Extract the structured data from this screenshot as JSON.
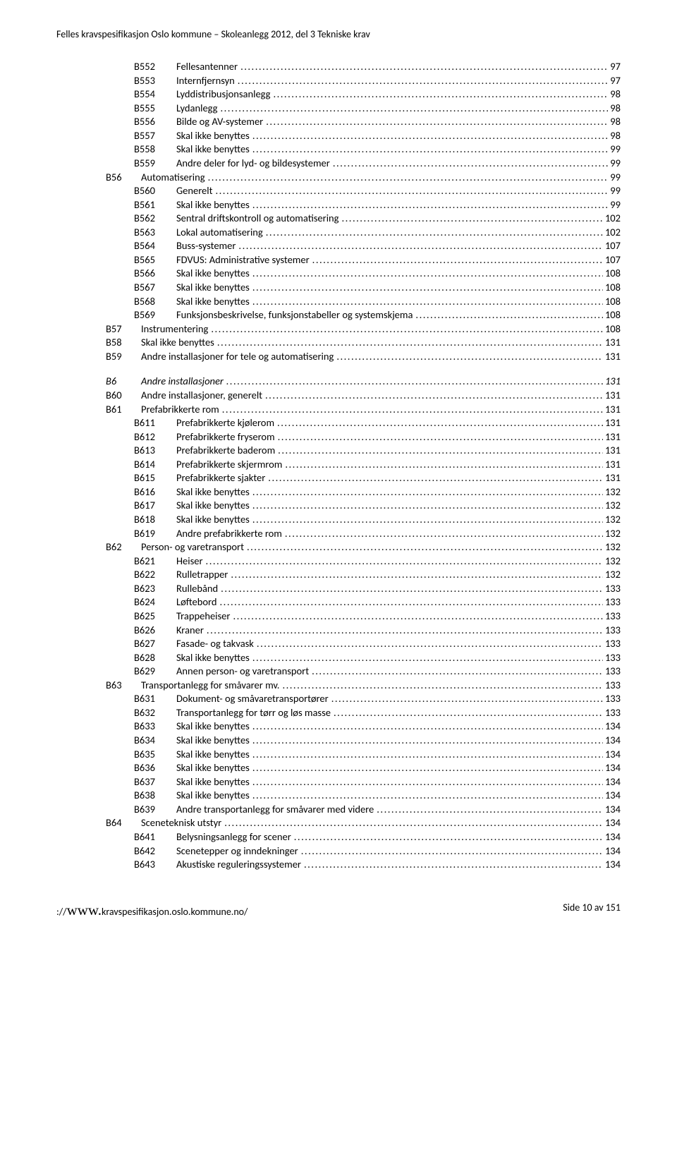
{
  "header_text": "Felles kravspesifikasjon Oslo kommune – Skoleanlegg 2012, del 3 Tekniske krav",
  "footer_left_prefix": "://",
  "footer_left_big": "www.",
  "footer_left_rest": "kravspesifikasjon.oslo.kommune.no/",
  "footer_right": "Side 10 av 151",
  "toc": [
    {
      "indent": 3,
      "code": "B552",
      "title": "Fellesantenner",
      "page": "97"
    },
    {
      "indent": 3,
      "code": "B553",
      "title": "Internfjernsyn",
      "page": "97"
    },
    {
      "indent": 3,
      "code": "B554",
      "title": "Lyddistribusjonsanlegg",
      "page": "98"
    },
    {
      "indent": 3,
      "code": "B555",
      "title": "Lydanlegg",
      "page": "98"
    },
    {
      "indent": 3,
      "code": "B556",
      "title": "Bilde og AV-systemer",
      "page": "98"
    },
    {
      "indent": 3,
      "code": "B557",
      "title": "Skal ikke benyttes",
      "page": "98"
    },
    {
      "indent": 3,
      "code": "B558",
      "title": "Skal ikke benyttes",
      "page": "99"
    },
    {
      "indent": 3,
      "code": "B559",
      "title": "Andre deler for lyd- og bildesystemer",
      "page": "99"
    },
    {
      "indent": 2,
      "code": "B56",
      "title": "Automatisering",
      "page": "99"
    },
    {
      "indent": 3,
      "code": "B560",
      "title": "Generelt",
      "page": "99"
    },
    {
      "indent": 3,
      "code": "B561",
      "title": "Skal ikke benyttes",
      "page": "99"
    },
    {
      "indent": 3,
      "code": "B562",
      "title": "Sentral driftskontroll og automatisering",
      "page": "102"
    },
    {
      "indent": 3,
      "code": "B563",
      "title": "Lokal automatisering",
      "page": "102"
    },
    {
      "indent": 3,
      "code": "B564",
      "title": "Buss-systemer",
      "page": "107"
    },
    {
      "indent": 3,
      "code": "B565",
      "title": "FDVUS: Administrative systemer",
      "page": "107"
    },
    {
      "indent": 3,
      "code": "B566",
      "title": "Skal ikke benyttes",
      "page": "108"
    },
    {
      "indent": 3,
      "code": "B567",
      "title": "Skal ikke benyttes",
      "page": "108"
    },
    {
      "indent": 3,
      "code": "B568",
      "title": "Skal ikke benyttes",
      "page": "108"
    },
    {
      "indent": 3,
      "code": "B569",
      "title": "Funksjonsbeskrivelse, funksjonstabeller og systemskjema",
      "page": "108"
    },
    {
      "indent": 2,
      "code": "B57",
      "title": "Instrumentering",
      "page": "108"
    },
    {
      "indent": 2,
      "code": "B58",
      "title": "Skal ikke benyttes",
      "page": "131"
    },
    {
      "indent": 2,
      "code": "B59",
      "title": "Andre installasjoner for tele og automatisering",
      "page": "131"
    },
    {
      "gap": true
    },
    {
      "indent": 2,
      "code": "B6",
      "title": "Andre installasjoner",
      "page": "131",
      "italic": true
    },
    {
      "indent": 2,
      "code": "B60",
      "title": "Andre installasjoner, generelt",
      "page": "131"
    },
    {
      "indent": 2,
      "code": "B61",
      "title": "Prefabrikkerte rom",
      "page": "131"
    },
    {
      "indent": 3,
      "code": "B611",
      "title": "Prefabrikkerte kjølerom",
      "page": "131"
    },
    {
      "indent": 3,
      "code": "B612",
      "title": "Prefabrikkerte fryserom",
      "page": "131"
    },
    {
      "indent": 3,
      "code": "B613",
      "title": "Prefabrikkerte baderom",
      "page": "131"
    },
    {
      "indent": 3,
      "code": "B614",
      "title": "Prefabrikkerte skjermrom",
      "page": "131"
    },
    {
      "indent": 3,
      "code": "B615",
      "title": "Prefabrikkerte sjakter",
      "page": "131"
    },
    {
      "indent": 3,
      "code": "B616",
      "title": "Skal ikke benyttes",
      "page": "132"
    },
    {
      "indent": 3,
      "code": "B617",
      "title": "Skal ikke benyttes",
      "page": "132"
    },
    {
      "indent": 3,
      "code": "B618",
      "title": "Skal ikke benyttes",
      "page": "132"
    },
    {
      "indent": 3,
      "code": "B619",
      "title": "Andre prefabrikkerte rom",
      "page": "132"
    },
    {
      "indent": 2,
      "code": "B62",
      "title": "Person- og varetransport",
      "page": "132"
    },
    {
      "indent": 3,
      "code": "B621",
      "title": "Heiser",
      "page": "132"
    },
    {
      "indent": 3,
      "code": "B622",
      "title": "Rulletrapper",
      "page": "132"
    },
    {
      "indent": 3,
      "code": "B623",
      "title": "Rullebånd",
      "page": "133"
    },
    {
      "indent": 3,
      "code": "B624",
      "title": "Løftebord",
      "page": "133"
    },
    {
      "indent": 3,
      "code": "B625",
      "title": "Trappeheiser",
      "page": "133"
    },
    {
      "indent": 3,
      "code": "B626",
      "title": "Kraner",
      "page": "133"
    },
    {
      "indent": 3,
      "code": "B627",
      "title": "Fasade- og takvask",
      "page": "133"
    },
    {
      "indent": 3,
      "code": "B628",
      "title": "Skal ikke benyttes",
      "page": "133"
    },
    {
      "indent": 3,
      "code": "B629",
      "title": "Annen person- og varetransport",
      "page": "133"
    },
    {
      "indent": 2,
      "code": "B63",
      "title": "Transportanlegg for småvarer mv.",
      "page": "133"
    },
    {
      "indent": 3,
      "code": "B631",
      "title": "Dokument- og småvaretransportører",
      "page": "133"
    },
    {
      "indent": 3,
      "code": "B632",
      "title": "Transportanlegg for tørr og løs masse",
      "page": "133"
    },
    {
      "indent": 3,
      "code": "B633",
      "title": "Skal ikke benyttes",
      "page": "134"
    },
    {
      "indent": 3,
      "code": "B634",
      "title": "Skal ikke benyttes",
      "page": "134"
    },
    {
      "indent": 3,
      "code": "B635",
      "title": "Skal ikke benyttes",
      "page": "134"
    },
    {
      "indent": 3,
      "code": "B636",
      "title": "Skal ikke benyttes",
      "page": "134"
    },
    {
      "indent": 3,
      "code": "B637",
      "title": "Skal ikke benyttes",
      "page": "134"
    },
    {
      "indent": 3,
      "code": "B638",
      "title": "Skal ikke benyttes",
      "page": "134"
    },
    {
      "indent": 3,
      "code": "B639",
      "title": "Andre transportanlegg for småvarer med videre",
      "page": "134"
    },
    {
      "indent": 2,
      "code": "B64",
      "title": "Sceneteknisk utstyr",
      "page": "134"
    },
    {
      "indent": 3,
      "code": "B641",
      "title": "Belysningsanlegg for scener",
      "page": "134"
    },
    {
      "indent": 3,
      "code": "B642",
      "title": "Scenetepper og inndekninger",
      "page": "134"
    },
    {
      "indent": 3,
      "code": "B643",
      "title": "Akustiske reguleringssystemer",
      "page": "134"
    }
  ],
  "code_width": {
    "2": "50px",
    "3": "60px"
  }
}
